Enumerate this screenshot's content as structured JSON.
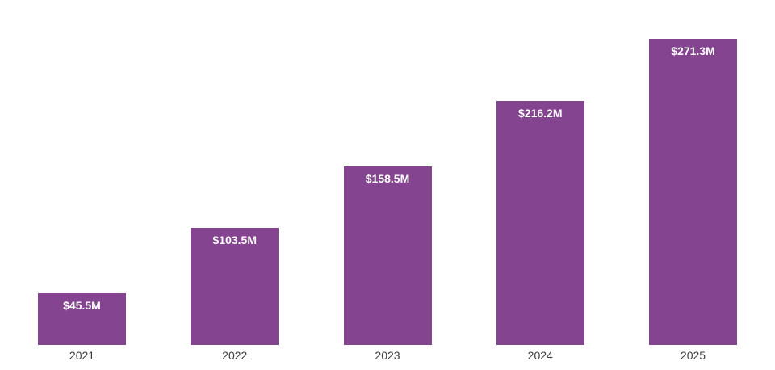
{
  "chart_data": {
    "type": "bar",
    "categories": [
      "2021",
      "2022",
      "2023",
      "2024",
      "2025"
    ],
    "values": [
      45.5,
      103.5,
      158.5,
      216.2,
      271.3
    ],
    "value_labels": [
      "$45.5M",
      "$103.5M",
      "$158.5M",
      "$216.2M",
      "$271.3M"
    ],
    "title": "",
    "xlabel": "",
    "ylabel": "",
    "ylim": [
      0,
      290
    ],
    "grid": false,
    "legend": false,
    "colors": {
      "bar": "#85448F",
      "value_label": "#FFFFFF",
      "axis_label": "#3D3D3D",
      "background": "#FFFFFF"
    }
  }
}
